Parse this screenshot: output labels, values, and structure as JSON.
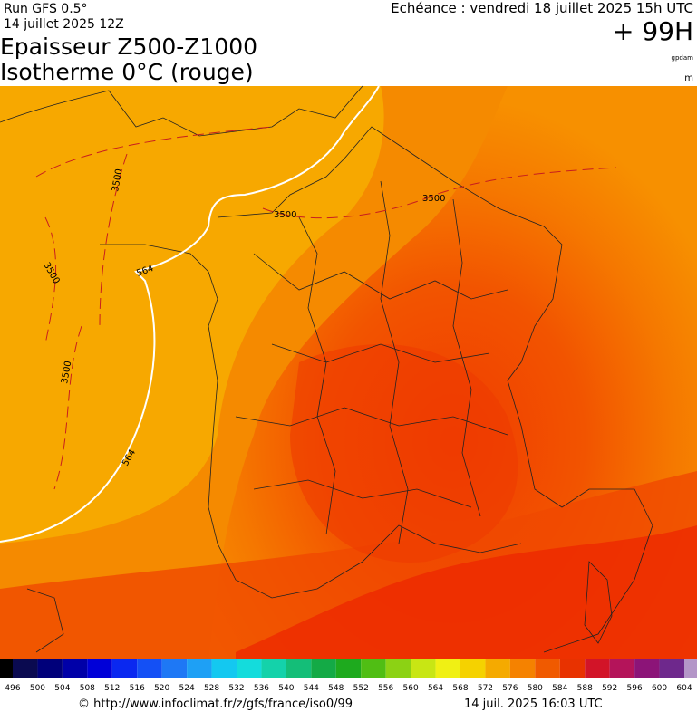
{
  "header": {
    "run": "Run GFS 0.5°",
    "run_date": "14 juillet 2025 12Z",
    "title": "Epaisseur Z500-Z1000",
    "subtitle": "Isotherme 0°C (rouge)",
    "valid": "Echéance : vendredi 18 juillet 2025 15h UTC",
    "lead": "+ 99H",
    "unit1": "gpdam",
    "unit2": "m"
  },
  "map": {
    "contour_labels": [
      "3500",
      "3500",
      "3500",
      "3500",
      "3500",
      "564",
      "564"
    ]
  },
  "legend": {
    "ticks": [
      496,
      500,
      504,
      508,
      512,
      516,
      520,
      524,
      528,
      532,
      536,
      540,
      544,
      548,
      552,
      556,
      560,
      564,
      568,
      572,
      576,
      580,
      584,
      588,
      592,
      596,
      600,
      604
    ],
    "colors": [
      "#000000",
      "#0a0a50",
      "#00007a",
      "#0000a8",
      "#0000d8",
      "#0a28f0",
      "#1450f5",
      "#1e78f5",
      "#1ea0f5",
      "#14c8f0",
      "#14dcdc",
      "#14d2aa",
      "#14be78",
      "#14aa46",
      "#1eaa1e",
      "#50be14",
      "#8cd214",
      "#c8e614",
      "#f0f014",
      "#f5d200",
      "#f5aa00",
      "#f58200",
      "#f05a00",
      "#e83200",
      "#d21428",
      "#b4145a",
      "#8c1478",
      "#6e288c",
      "#b496c8"
    ]
  },
  "footer": {
    "source": "© http://www.infoclimat.fr/z/gfs/france/iso0/99",
    "stamp": "14 juil. 2025 16:03 UTC"
  }
}
